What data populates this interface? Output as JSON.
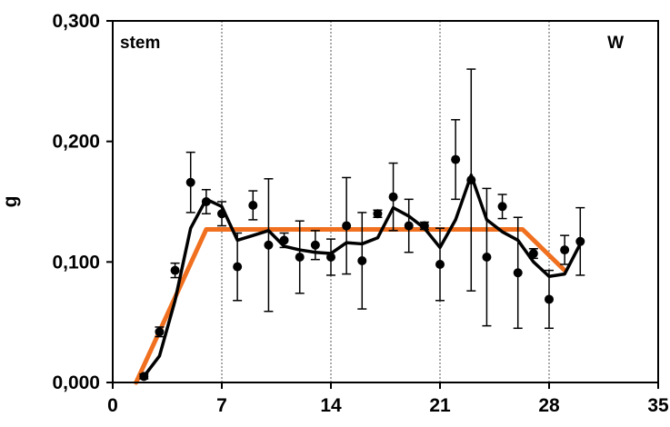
{
  "chart_data": {
    "type": "scatter",
    "title": "",
    "panel_label": "stem",
    "panel_tag": "W",
    "xlabel": "",
    "ylabel": "g",
    "xlim": [
      0,
      35
    ],
    "ylim": [
      0,
      0.3
    ],
    "xticks": [
      0,
      7,
      14,
      21,
      28,
      35
    ],
    "yticks": [
      0,
      0.1,
      0.2,
      0.3
    ],
    "xtick_labels": [
      "0",
      "7",
      "14",
      "21",
      "28",
      "35"
    ],
    "ytick_labels": [
      "0,000",
      "0,100",
      "0,200",
      "0,300"
    ],
    "vertical_gridlines_at": [
      7,
      14,
      21,
      28
    ],
    "grid": "vertical dotted",
    "legend": "none",
    "series": [
      {
        "kind": "points_with_error_bars",
        "color": "#000000",
        "points": [
          {
            "x": 2,
            "y": 0.005,
            "err": 0.002
          },
          {
            "x": 3,
            "y": 0.042,
            "err": 0.004
          },
          {
            "x": 4,
            "y": 0.093,
            "err": 0.006
          },
          {
            "x": 5,
            "y": 0.166,
            "err": 0.025
          },
          {
            "x": 6,
            "y": 0.15,
            "err": 0.01
          },
          {
            "x": 7,
            "y": 0.14,
            "err": 0.01
          },
          {
            "x": 8,
            "y": 0.096,
            "err": 0.028
          },
          {
            "x": 9,
            "y": 0.147,
            "err": 0.012
          },
          {
            "x": 10,
            "y": 0.114,
            "err": 0.055
          },
          {
            "x": 11,
            "y": 0.118,
            "err": 0.006
          },
          {
            "x": 12,
            "y": 0.104,
            "err": 0.03
          },
          {
            "x": 13,
            "y": 0.114,
            "err": 0.012
          },
          {
            "x": 14,
            "y": 0.104,
            "err": 0.015
          },
          {
            "x": 15,
            "y": 0.13,
            "err": 0.04
          },
          {
            "x": 16,
            "y": 0.101,
            "err": 0.04
          },
          {
            "x": 17,
            "y": 0.14,
            "err": 0.003
          },
          {
            "x": 18,
            "y": 0.154,
            "err": 0.028
          },
          {
            "x": 19,
            "y": 0.13,
            "err": 0.022
          },
          {
            "x": 20,
            "y": 0.13,
            "err": 0.003
          },
          {
            "x": 21,
            "y": 0.098,
            "err": 0.03
          },
          {
            "x": 22,
            "y": 0.185,
            "err": 0.033
          },
          {
            "x": 23,
            "y": 0.168,
            "err": 0.092
          },
          {
            "x": 24,
            "y": 0.104,
            "err": 0.057
          },
          {
            "x": 25,
            "y": 0.146,
            "err": 0.01
          },
          {
            "x": 26,
            "y": 0.091,
            "err": 0.046
          },
          {
            "x": 27,
            "y": 0.107,
            "err": 0.004
          },
          {
            "x": 28,
            "y": 0.069,
            "err": 0.024
          },
          {
            "x": 29,
            "y": 0.11,
            "err": 0.012
          },
          {
            "x": 30,
            "y": 0.117,
            "err": 0.028
          }
        ]
      },
      {
        "kind": "smoothed_line",
        "color": "#000000",
        "x": [
          2,
          3,
          4,
          5,
          6,
          7,
          8,
          9,
          10,
          11,
          12,
          13,
          14,
          15,
          16,
          17,
          18,
          19,
          20,
          21,
          22,
          23,
          24,
          25,
          26,
          27,
          28,
          29,
          30
        ],
        "y": [
          0.005,
          0.022,
          0.068,
          0.128,
          0.152,
          0.146,
          0.118,
          0.122,
          0.126,
          0.113,
          0.11,
          0.108,
          0.107,
          0.116,
          0.115,
          0.12,
          0.145,
          0.138,
          0.128,
          0.112,
          0.135,
          0.172,
          0.135,
          0.125,
          0.118,
          0.1,
          0.088,
          0.09,
          0.115
        ]
      },
      {
        "kind": "model_fit",
        "color": "#f07020",
        "x": [
          1.5,
          6,
          26.3,
          29
        ],
        "y": [
          0.0,
          0.127,
          0.127,
          0.093
        ]
      }
    ]
  }
}
